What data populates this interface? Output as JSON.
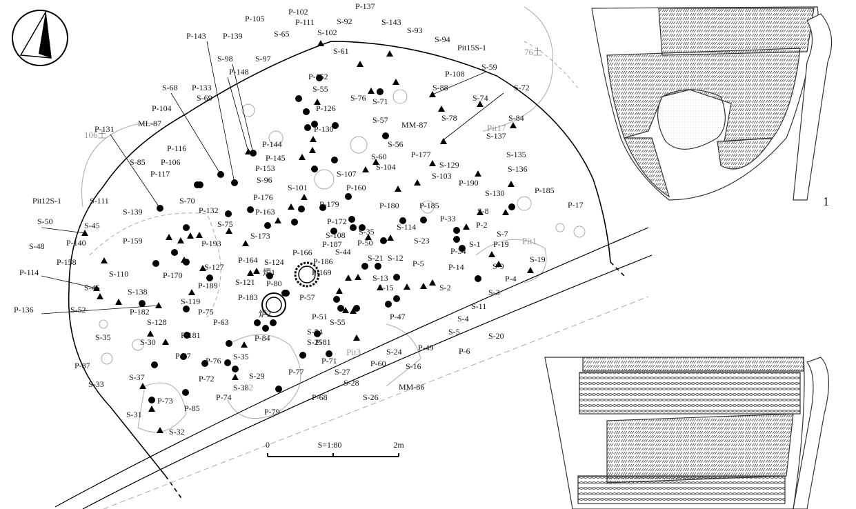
{
  "plan": {
    "labels": [
      "P-102",
      "P-137",
      "P-111",
      "S-92",
      "S-143",
      "P-105",
      "S-65",
      "S-102",
      "S-93",
      "P-143",
      "P-139",
      "S-94",
      "Pit15S-1",
      "S-61",
      "S-98",
      "S-97",
      "P-148",
      "P-152",
      "P-108",
      "S-59",
      "S-55",
      "S-88",
      "S-72",
      "S-68",
      "P-133",
      "S-69",
      "S-76",
      "S-71",
      "S-74",
      "P-104",
      "P-126",
      "S-57",
      "MM-87",
      "S-78",
      "S-84",
      "ML-87",
      "P-130",
      "S-137",
      "P-131",
      "P-144",
      "S-56",
      "P-116",
      "P-106",
      "S-85",
      "P-145",
      "S-60",
      "P-177",
      "S-135",
      "S-104",
      "S-129",
      "P-117",
      "P-153",
      "S-107",
      "S-136",
      "S-103",
      "S-96",
      "P-160",
      "S-101",
      "P-190",
      "S-130",
      "P-185",
      "Pit12S-1",
      "S-111",
      "S-70",
      "P-132",
      "P-176",
      "P-179",
      "P-180",
      "P-185",
      "S-8",
      "P-17",
      "S-139",
      "S-45",
      "S-50",
      "S-75",
      "P-163",
      "P-172",
      "S-35",
      "S-114",
      "P-33",
      "P-2",
      "S-7",
      "P-140",
      "P-159",
      "P-193",
      "S-173",
      "S-108",
      "P-187",
      "P-50",
      "S-23",
      "P-34",
      "S-1",
      "P-19",
      "S-48",
      "P-158",
      "P-164",
      "P-166",
      "S-44",
      "S-21",
      "S-12",
      "S-127",
      "S-124",
      "P-186",
      "P-5",
      "P-14",
      "S-9",
      "S-19",
      "P-114",
      "S-110",
      "P-170",
      "炉1",
      "P-169",
      "S-13",
      "P-4",
      "S-46",
      "P-189",
      "S-121",
      "P-80",
      "S-15",
      "S-2",
      "S-3",
      "S-138",
      "P-183",
      "P-57",
      "S-119",
      "P-136",
      "S-52",
      "P-182",
      "炉2",
      "P-75",
      "S-11",
      "P-51",
      "P-47",
      "S-128",
      "P-63",
      "S-4",
      "P-84",
      "S-55",
      "S-54",
      "S-25",
      "P-181",
      "S-5",
      "S-20",
      "S-35",
      "S-30",
      "P-81",
      "S-24",
      "P-49",
      "P-6",
      "P-67",
      "P-76",
      "S-35",
      "S-16",
      "P-71",
      "P-60",
      "S-27",
      "P-87",
      "S-37",
      "P-72",
      "S-29",
      "S-38",
      "S-28",
      "P-77",
      "S-33",
      "P-74",
      "S-26",
      "MM-86",
      "P-73",
      "P-85",
      "P-68",
      "P-79",
      "S-31",
      "S-32"
    ],
    "gray_labels": [
      "76土",
      "106土",
      "Pit17",
      "Pit1",
      "Pit3",
      "22"
    ]
  },
  "scale": {
    "zero": "0",
    "ratio": "S=1:80",
    "end": "2m"
  },
  "figure_number": "1"
}
